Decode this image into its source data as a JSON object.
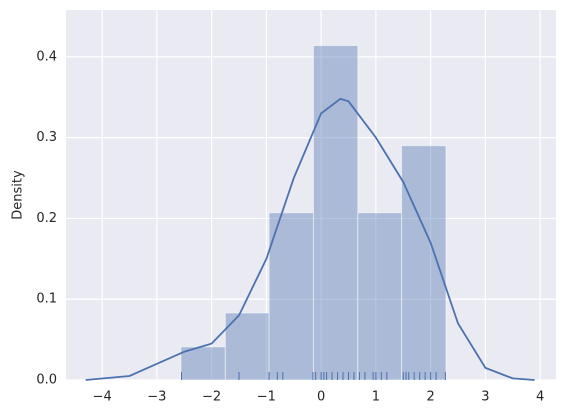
{
  "chart_data": {
    "type": "histogram",
    "ylabel": "Density",
    "bins": [
      -2.56,
      -1.75,
      -0.95,
      -0.14,
      0.67,
      1.47,
      2.28
    ],
    "values": [
      0.041,
      0.083,
      0.207,
      0.414,
      0.207,
      0.29
    ],
    "color": "#4c72b0",
    "kde": {
      "x": [
        -4.3,
        -3.5,
        -3,
        -2.5,
        -2,
        -1.5,
        -1,
        -0.5,
        0,
        0.35,
        0.5,
        1,
        1.5,
        2,
        2.5,
        3,
        3.5,
        3.9
      ],
      "y": [
        0,
        0.005,
        0.02,
        0.035,
        0.045,
        0.08,
        0.15,
        0.25,
        0.33,
        0.348,
        0.345,
        0.3,
        0.245,
        0.17,
        0.07,
        0.015,
        0.002,
        0
      ]
    },
    "rug": [
      -2.55,
      -1.5,
      -0.95,
      -0.8,
      -0.7,
      -0.15,
      -0.1,
      0.0,
      0.05,
      0.1,
      0.2,
      0.3,
      0.4,
      0.5,
      0.6,
      0.7,
      0.8,
      0.95,
      1.0,
      1.1,
      1.2,
      1.5,
      1.55,
      1.6,
      1.7,
      1.8,
      1.9,
      2.0,
      2.1,
      2.27
    ],
    "xlim": [
      -4.66,
      4.29
    ],
    "ylim": [
      0,
      0.458
    ],
    "xticks": [
      {
        "value": -4,
        "label": "−4"
      },
      {
        "value": -3,
        "label": "−3"
      },
      {
        "value": -2,
        "label": "−2"
      },
      {
        "value": -1,
        "label": "−1"
      },
      0,
      1,
      2,
      3,
      4
    ],
    "yticks": [
      {
        "value": 0,
        "label": "0.0"
      },
      0.1,
      0.2,
      0.3,
      0.4
    ],
    "grid": true
  }
}
